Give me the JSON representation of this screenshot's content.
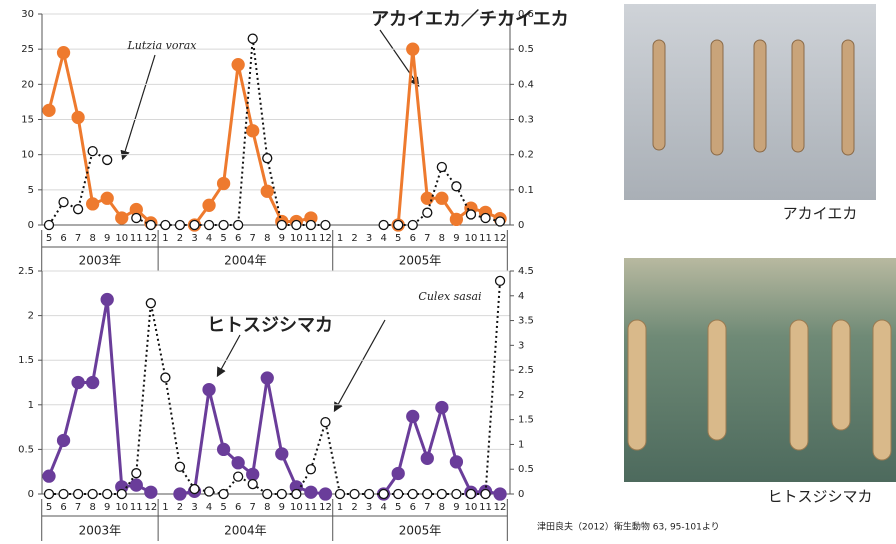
{
  "chart_data": [
    {
      "type": "line",
      "categories": [
        "5",
        "6",
        "7",
        "8",
        "9",
        "10",
        "11",
        "12",
        "1",
        "2",
        "3",
        "4",
        "5",
        "6",
        "7",
        "8",
        "9",
        "10",
        "11",
        "12",
        "1",
        "2",
        "3",
        "4",
        "5",
        "6",
        "7",
        "8",
        "9",
        "10",
        "11",
        "12"
      ],
      "year_labels": [
        "2003年",
        "2004年",
        "2005年"
      ],
      "ylim": [
        0,
        30
      ],
      "yticks": [
        0,
        5,
        10,
        15,
        20,
        25,
        30
      ],
      "y2lim": [
        0,
        0.6
      ],
      "y2ticks": [
        0,
        0.1,
        0.2,
        0.3,
        0.4,
        0.5,
        0.6
      ],
      "grid": true,
      "series": [
        {
          "name": "アカイエカ／チカイエカ",
          "color": "#ee7a2e",
          "marker": "filled",
          "values": [
            16.3,
            24.5,
            15.3,
            3,
            3.8,
            1,
            2.2,
            0.3,
            null,
            null,
            0,
            2.8,
            5.9,
            22.8,
            13.4,
            4.8,
            0.5,
            0.5,
            1,
            null,
            null,
            null,
            null,
            null,
            0,
            25,
            3.8,
            3.8,
            0.8,
            2.4,
            1.8,
            0.9
          ]
        },
        {
          "name": "Lutzia vorax",
          "color": "#111111",
          "marker": "open",
          "axis": "y2",
          "dashed": true,
          "values": [
            0,
            0.065,
            0.045,
            0.21,
            0.185,
            null,
            0.02,
            0,
            0,
            0,
            0,
            0,
            0,
            0,
            0.53,
            0.19,
            0,
            0,
            0,
            0,
            null,
            null,
            null,
            0,
            0,
            0,
            0.035,
            0.165,
            0.11,
            0.03,
            0.02,
            0.01
          ]
        }
      ]
    },
    {
      "type": "line",
      "categories": [
        "5",
        "6",
        "7",
        "8",
        "9",
        "10",
        "11",
        "12",
        "1",
        "2",
        "3",
        "4",
        "5",
        "6",
        "7",
        "8",
        "9",
        "10",
        "11",
        "12",
        "1",
        "2",
        "3",
        "4",
        "5",
        "6",
        "7",
        "8",
        "9",
        "10",
        "11",
        "12"
      ],
      "year_labels": [
        "2003年",
        "2004年",
        "2005年"
      ],
      "ylim": [
        0,
        2.5
      ],
      "yticks": [
        0,
        0.5,
        1,
        1.5,
        2,
        2.5
      ],
      "y2lim": [
        0,
        4.5
      ],
      "y2ticks": [
        0,
        0.5,
        1,
        1.5,
        2,
        2.5,
        3,
        3.5,
        4,
        4.5
      ],
      "grid": true,
      "series": [
        {
          "name": "ヒトスジシマカ",
          "color": "#6a3d9a",
          "marker": "filled",
          "values": [
            0.2,
            0.6,
            1.25,
            1.25,
            2.18,
            0.08,
            0.1,
            0.02,
            null,
            0,
            0.03,
            1.17,
            0.5,
            0.35,
            0.22,
            1.3,
            0.45,
            0.08,
            0.02,
            0,
            null,
            null,
            null,
            0,
            0.23,
            0.87,
            0.4,
            0.97,
            0.36,
            0.02,
            0.03,
            0
          ]
        },
        {
          "name": "Culex sasai",
          "color": "#111111",
          "marker": "open",
          "axis": "y2",
          "dashed": true,
          "values": [
            0,
            0,
            0,
            0,
            0,
            0,
            0.42,
            3.85,
            2.35,
            0.55,
            0.1,
            0.05,
            0,
            0.35,
            0.2,
            0,
            0,
            0,
            0.5,
            1.45,
            0,
            0,
            0,
            0,
            0,
            0,
            0,
            0,
            0,
            0,
            0,
            4.3
          ]
        }
      ]
    }
  ],
  "photos": [
    {
      "caption": "アカイエカ"
    },
    {
      "caption": "ヒトスジシマカ"
    }
  ],
  "citation": "津田良夫（2012）衛生動物 63, 95-101より"
}
